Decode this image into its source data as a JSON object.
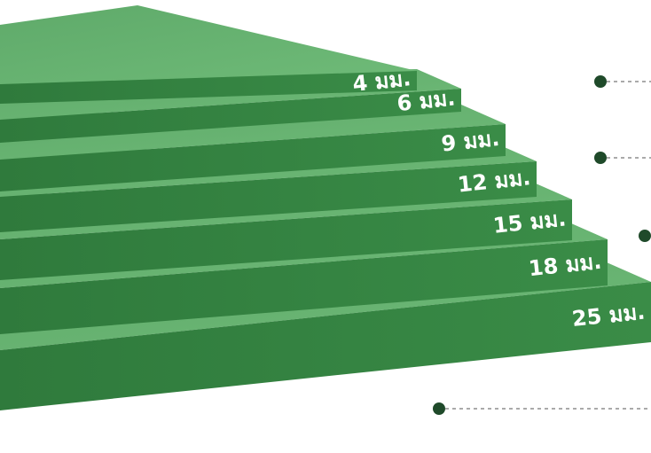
{
  "labels": [
    "4 มม.",
    "6 มม.",
    "9 มม.",
    "12 มม.",
    "15 มม.",
    "18 มม.",
    "25 มม."
  ]
}
